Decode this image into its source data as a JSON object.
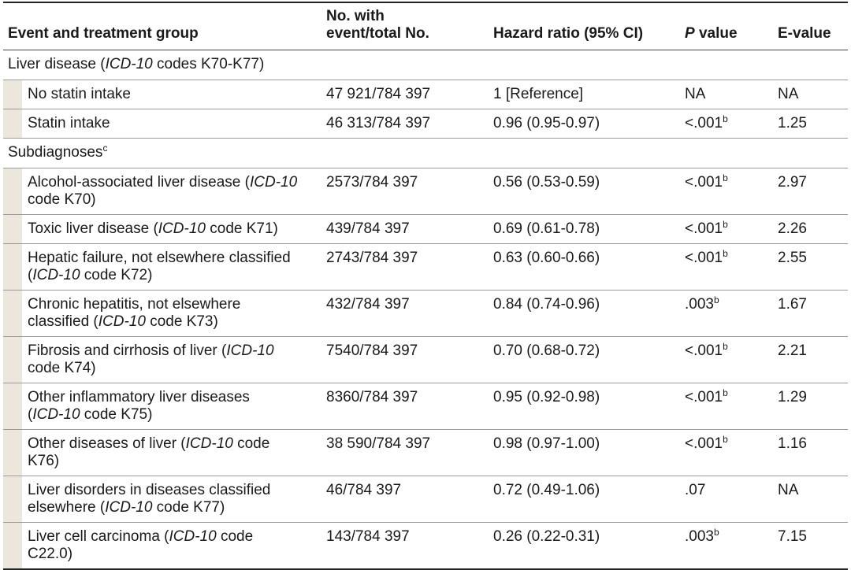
{
  "headers": {
    "event": "Event and treatment group",
    "count": "No. with\nevent/total No.",
    "hr": "Hazard ratio (95% CI)",
    "p_prefix": "P",
    "p_suffix": " value",
    "evalue": "E-value"
  },
  "sections": {
    "liver": {
      "a": "Liver disease (",
      "b": "ICD-10",
      "c": " codes K70-K77)"
    },
    "sub": {
      "a": "Subdiagnoses",
      "sup": "c"
    }
  },
  "rows": [
    {
      "label": [
        "No statin intake"
      ],
      "count": "47 921/784 397",
      "hr": "1 [Reference]",
      "p": "NA",
      "p_sup": "",
      "e": "NA"
    },
    {
      "label": [
        "Statin intake"
      ],
      "count": "46 313/784 397",
      "hr": "0.96 (0.95-0.97)",
      "p": "<.001",
      "p_sup": "b",
      "e": "1.25"
    },
    {
      "label": [
        "Alcohol-associated liver disease (",
        "ICD-10",
        "\ncode K70)"
      ],
      "count": "2573/784 397",
      "hr": "0.56 (0.53-0.59)",
      "p": "<.001",
      "p_sup": "b",
      "e": "2.97"
    },
    {
      "label": [
        "Toxic liver disease (",
        "ICD-10",
        " code K71)"
      ],
      "count": "439/784 397",
      "hr": "0.69 (0.61-0.78)",
      "p": "<.001",
      "p_sup": "b",
      "e": "2.26"
    },
    {
      "label": [
        "Hepatic failure, not elsewhere classified\n(",
        "ICD-10",
        " code K72)"
      ],
      "count": "2743/784 397",
      "hr": "0.63 (0.60-0.66)",
      "p": "<.001",
      "p_sup": "b",
      "e": "2.55"
    },
    {
      "label": [
        "Chronic hepatitis, not elsewhere\nclassified (",
        "ICD-10",
        " code K73)"
      ],
      "count": "432/784 397",
      "hr": "0.84 (0.74-0.96)",
      "p": ".003",
      "p_sup": "b",
      "e": "1.67"
    },
    {
      "label": [
        "Fibrosis and cirrhosis of liver (",
        "ICD-10",
        "\ncode K74)"
      ],
      "count": "7540/784 397",
      "hr": "0.70 (0.68-0.72)",
      "p": "<.001",
      "p_sup": "b",
      "e": "2.21"
    },
    {
      "label": [
        "Other inflammatory liver diseases\n(",
        "ICD-10",
        " code K75)"
      ],
      "count": "8360/784 397",
      "hr": "0.95 (0.92-0.98)",
      "p": "<.001",
      "p_sup": "b",
      "e": "1.29"
    },
    {
      "label": [
        "Other diseases of liver (",
        "ICD-10",
        " code\nK76)"
      ],
      "count": "38 590/784 397",
      "hr": "0.98 (0.97-1.00)",
      "p": "<.001",
      "p_sup": "b",
      "e": "1.16"
    },
    {
      "label": [
        "Liver disorders in diseases classified\nelsewhere (",
        "ICD-10",
        " code K77)"
      ],
      "count": "46/784 397",
      "hr": "0.72 (0.49-1.06)",
      "p": ".07",
      "p_sup": "",
      "e": "NA"
    },
    {
      "label": [
        "Liver cell carcinoma (",
        "ICD-10",
        " code\nC22.0)"
      ],
      "count": "143/784 397",
      "hr": "0.26 (0.22-0.31)",
      "p": ".003",
      "p_sup": "b",
      "e": "7.15"
    }
  ]
}
